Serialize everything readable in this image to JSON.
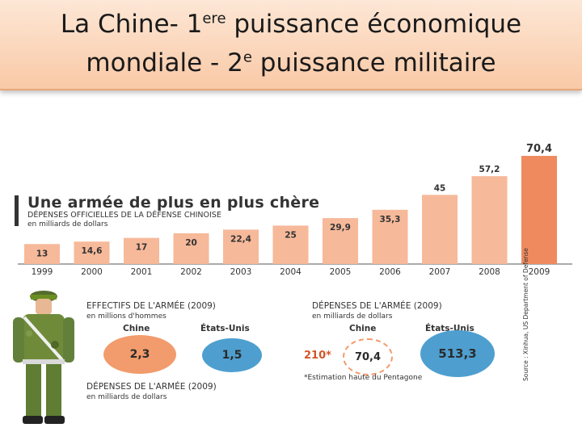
{
  "title": {
    "line1_a": "La Chine- 1",
    "line1_sup": "ere",
    "line1_b": " puissance économique",
    "line2_a": "mondiale - 2",
    "line2_sup": "e",
    "line2_b": " puissance militaire"
  },
  "chart_data": {
    "type": "bar",
    "title": "Une armée de plus en plus chère",
    "subtitle": "DÉPENSES OFFICIELLES DE LA DÉFENSE CHINOISE",
    "unit": "en milliards de dollars",
    "categories": [
      "1999",
      "2000",
      "2001",
      "2002",
      "2003",
      "2004",
      "2005",
      "2006",
      "2007",
      "2008",
      "2009"
    ],
    "values": [
      13,
      14.6,
      17,
      20,
      22.4,
      25,
      29.9,
      35.3,
      45,
      57.2,
      70.4
    ],
    "value_labels": [
      "13",
      "14,6",
      "17",
      "20",
      "22,4",
      "25",
      "29,9",
      "35,3",
      "45",
      "57,2",
      "70,4"
    ],
    "ylim": [
      0,
      72
    ],
    "colors": {
      "bar": "#f6b99a",
      "highlight": "#ef8a5f",
      "axis": "#555555"
    }
  },
  "effectifs": {
    "heading": "EFFECTIFS DE L'ARMÉE (2009)",
    "unit": "en millions d'hommes",
    "china_label": "Chine",
    "us_label": "États-Unis",
    "china_value": "2,3",
    "us_value": "1,5"
  },
  "depenses_left": {
    "heading": "DÉPENSES DE L'ARMÉE (2009)",
    "unit": "en milliards de dollars"
  },
  "depenses_right": {
    "heading": "DÉPENSES DE L'ARMÉE (2009)",
    "unit": "en milliards de dollars",
    "china_label": "Chine",
    "us_label": "États-Unis",
    "pentagon_estimate": "210*",
    "china_value": "70,4",
    "us_value": "513,3",
    "note": "*Estimation haute du Pentagone"
  },
  "source": "Source : Xinhua, US Department of Defense",
  "colors": {
    "orange": "#f29b6c",
    "blue": "#4e9fd0",
    "dark_orange": "#d2562a"
  }
}
